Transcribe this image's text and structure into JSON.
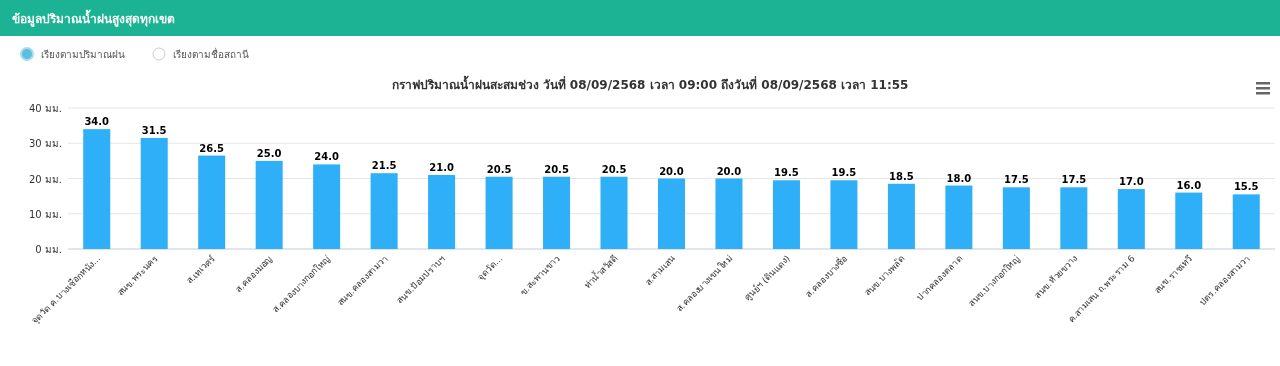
{
  "chart_data": {
    "type": "bar",
    "title": "ข้อมูลปริมาณน้ำฝนสูงสุดทุกเขต",
    "subtitle": "กราฟปริมาณน้ำฝนสะสมช่วง วันที่ 08/09/2568 เวลา 09:00 ถึงวันที่ 08/09/2568 เวลา 11:55",
    "annotations": [
      "เรียงตามปริมาณฝน",
      "เรียงตามชื่อสถานี"
    ],
    "categories": [
      "จุดวัด ค.บางเชือกหนัง...",
      "สนข.พระนคร",
      "ส.เทเวศร์",
      "ส.คลองมอญ",
      "ส.คลองบางกอกใหญ่",
      "สนข.คลองสามวา",
      "สนข.ป้อมปราบฯ",
      "จุดวัด...",
      "ข.สะพานขาว",
      "ท่าน้ำสวัสดี",
      "ส.สามเสน",
      "ส.คลองบางเขนใหม่",
      "ศูนย์ฯ (ดินแดง)",
      "ส.คลองบางซื่อ",
      "สนข.บางพลัด",
      "ปากคลองตลาด",
      "สนข.บางกอกใหญ่",
      "สนข.ห้วยขวาง",
      "ค.สามเสน ถ.พระราม 6",
      "สนข.ราชเทวี",
      "ปตร.คลองสามวา"
    ],
    "values": [
      34.0,
      31.5,
      26.5,
      25.0,
      24.0,
      21.5,
      21.0,
      20.5,
      20.5,
      20.5,
      20.0,
      20.0,
      19.5,
      19.5,
      18.5,
      18.0,
      17.5,
      17.5,
      17.0,
      16.0,
      15.5
    ],
    "value_labels": [
      "34.0",
      "31.5",
      "26.5",
      "25.0",
      "24.0",
      "21.5",
      "21.0",
      "20.5",
      "20.5",
      "20.5",
      "20.0",
      "20.0",
      "19.5",
      "19.5",
      "18.5",
      "18.0",
      "17.5",
      "17.5",
      "17.0",
      "16.0",
      "15.5"
    ],
    "color": "#2eaff7",
    "grid": "y",
    "ylim": [
      0,
      40
    ],
    "yticks": [
      {
        "value": 0,
        "label": "0 มม."
      },
      {
        "value": 10,
        "label": "10 มม."
      },
      {
        "value": 20,
        "label": "20 มม."
      },
      {
        "value": 30,
        "label": "30 มม."
      },
      {
        "value": 40,
        "label": "40 มม."
      }
    ]
  }
}
